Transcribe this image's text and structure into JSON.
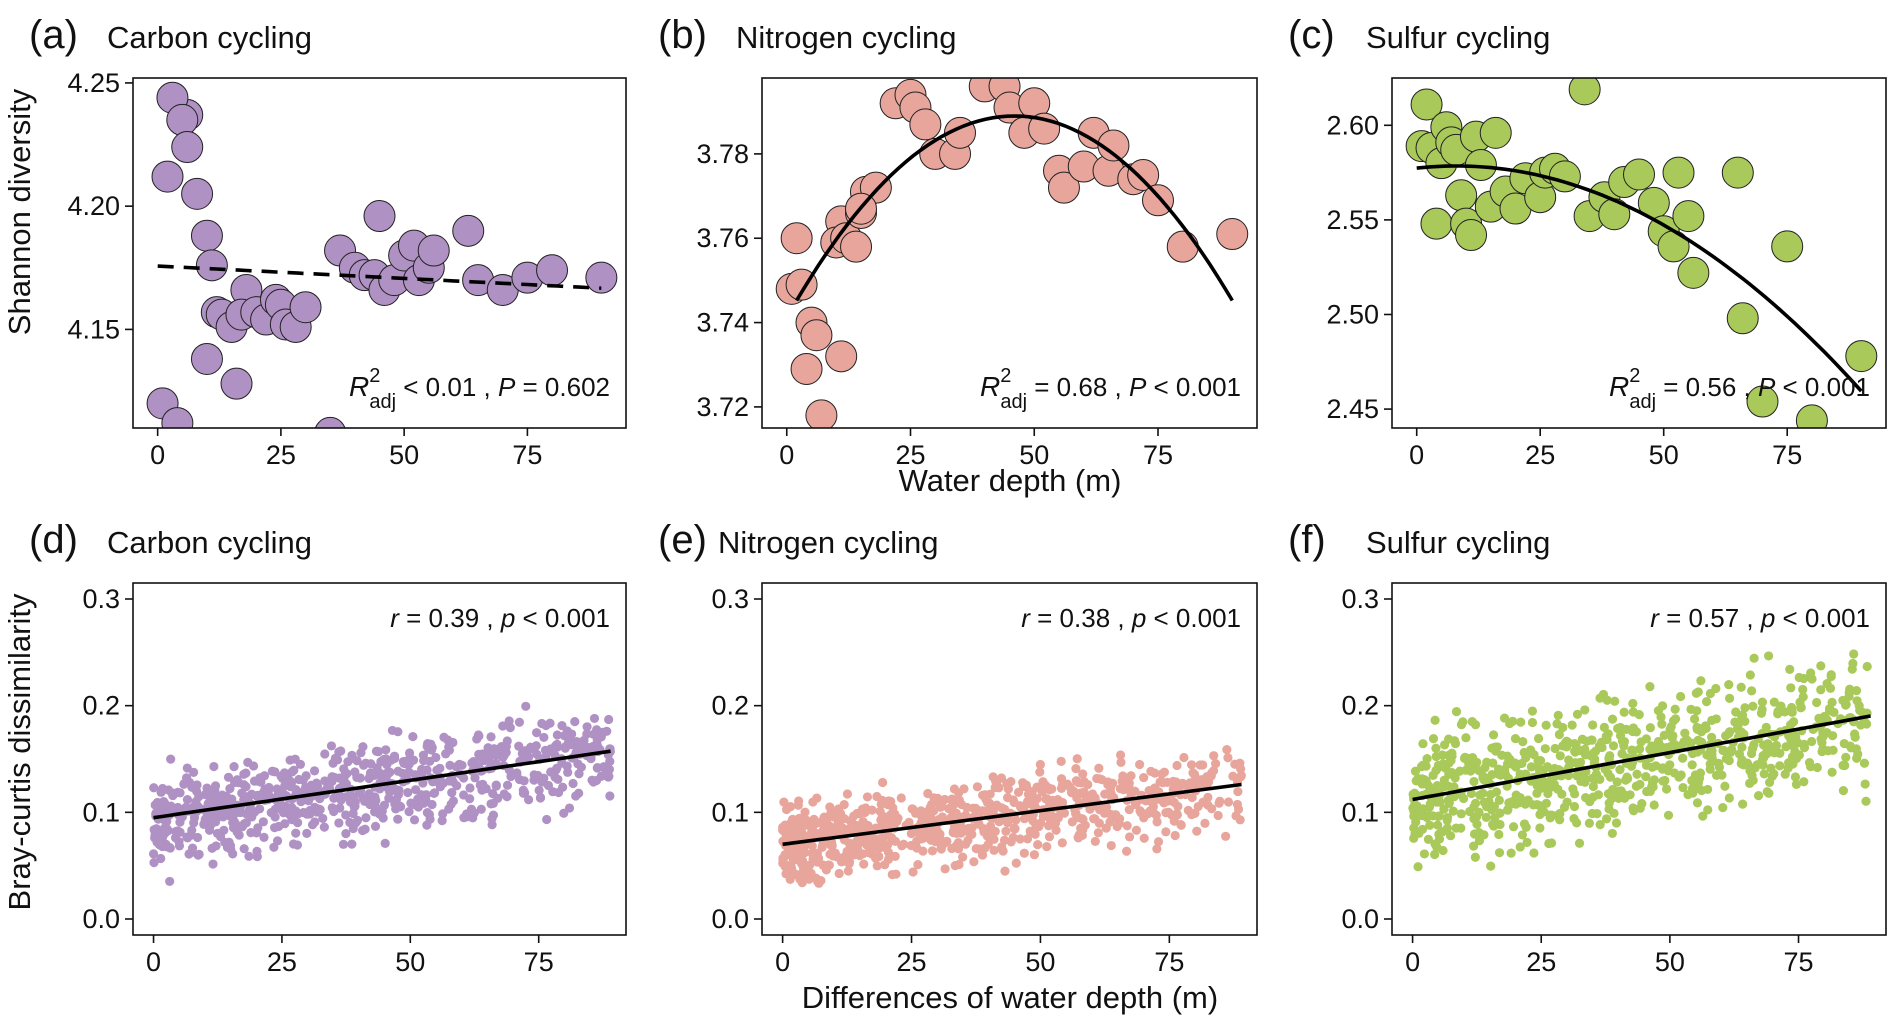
{
  "figure": {
    "ylabel_top": "Shannon diversity",
    "xlabel_top": "Water depth (m)",
    "ylabel_bottom": "Bray-curtis dissimilarity",
    "xlabel_bottom": "Differences of water depth (m)"
  },
  "chart_data": [
    {
      "id": "a",
      "panel_label": "(a)",
      "title": "Carbon cycling",
      "type": "scatter",
      "color": "#b091c4",
      "xlim": [
        -5,
        95
      ],
      "ylim": [
        4.11,
        4.252
      ],
      "xticks": [
        0,
        25,
        50,
        75
      ],
      "yticks": [
        4.15,
        4.2,
        4.25
      ],
      "ytick_labels": [
        "4.15",
        "4.20",
        "4.25"
      ],
      "xtick_labels": [
        "0",
        "25",
        "50",
        "75"
      ],
      "x": [
        1,
        4,
        6,
        3,
        5,
        6,
        2,
        8,
        10,
        11,
        10,
        12,
        13,
        15,
        16,
        18,
        17,
        20,
        22,
        24,
        25,
        26,
        28,
        30,
        35,
        37,
        40,
        42,
        44,
        45,
        46,
        48,
        50,
        52,
        53,
        55,
        56,
        63,
        65,
        70,
        75,
        80,
        90
      ],
      "y": [
        4.12,
        4.112,
        4.237,
        4.244,
        4.235,
        4.224,
        4.212,
        4.205,
        4.188,
        4.176,
        4.138,
        4.157,
        4.156,
        4.151,
        4.128,
        4.166,
        4.156,
        4.157,
        4.154,
        4.162,
        4.16,
        4.152,
        4.151,
        4.159,
        4.108,
        4.182,
        4.175,
        4.172,
        4.172,
        4.196,
        4.166,
        4.17,
        4.18,
        4.184,
        4.17,
        4.175,
        4.182,
        4.19,
        4.17,
        4.166,
        4.171,
        4.174,
        4.171
      ],
      "fit": {
        "style": "dashed",
        "type": "linear",
        "x_range": [
          0,
          90
        ],
        "a": 4.1757,
        "b": -0.0001
      },
      "stat": {
        "lhs": "R",
        "sup": "2",
        "sub": "adj",
        "rest": " < 0.01 , ",
        "p_sym": "P",
        "p_rest": " = 0.602"
      }
    },
    {
      "id": "b",
      "panel_label": "(b)",
      "title": "Nitrogen cycling",
      "type": "scatter",
      "color": "#e8a59c",
      "xlim": [
        -5,
        95
      ],
      "ylim": [
        3.715,
        3.798
      ],
      "xticks": [
        0,
        25,
        50,
        75
      ],
      "yticks": [
        3.72,
        3.74,
        3.76,
        3.78
      ],
      "ytick_labels": [
        "3.72",
        "3.74",
        "3.76",
        "3.78"
      ],
      "xtick_labels": [
        "0",
        "25",
        "50",
        "75"
      ],
      "x": [
        1,
        3,
        5,
        6,
        4,
        7,
        2,
        11,
        10,
        12,
        11,
        14,
        15,
        16,
        18,
        15,
        22,
        25,
        26,
        28,
        30,
        34,
        35,
        40,
        44,
        45,
        48,
        50,
        52,
        55,
        56,
        60,
        62,
        65,
        66,
        70,
        72,
        75,
        80,
        90
      ],
      "y": [
        3.748,
        3.749,
        3.74,
        3.737,
        3.729,
        3.718,
        3.76,
        3.764,
        3.759,
        3.76,
        3.732,
        3.758,
        3.766,
        3.771,
        3.772,
        3.767,
        3.792,
        3.794,
        3.791,
        3.787,
        3.78,
        3.78,
        3.785,
        3.796,
        3.796,
        3.791,
        3.785,
        3.792,
        3.786,
        3.776,
        3.772,
        3.777,
        3.785,
        3.776,
        3.782,
        3.774,
        3.775,
        3.769,
        3.758,
        3.761
      ],
      "fit": {
        "style": "solid",
        "type": "quadratic",
        "x_range": [
          2,
          90
        ],
        "vertex_x": 46,
        "vertex_y": 3.789,
        "k": -2.26e-05
      },
      "stat": {
        "lhs": "R",
        "sup": "2",
        "sub": "adj",
        "rest": " = 0.68 , ",
        "p_sym": "P",
        "p_rest": " < 0.001"
      }
    },
    {
      "id": "c",
      "panel_label": "(c)",
      "title": "Sulfur cycling",
      "type": "scatter",
      "color": "#a9c95a",
      "xlim": [
        -5,
        95
      ],
      "ylim": [
        2.44,
        2.625
      ],
      "xticks": [
        0,
        25,
        50,
        75
      ],
      "yticks": [
        2.45,
        2.5,
        2.55,
        2.6
      ],
      "ytick_labels": [
        "2.45",
        "2.50",
        "2.55",
        "2.60"
      ],
      "xtick_labels": [
        "0",
        "25",
        "50",
        "75"
      ],
      "x": [
        1,
        3,
        2,
        5,
        4,
        6,
        7,
        8,
        9,
        10,
        11,
        12,
        13,
        15,
        16,
        18,
        20,
        22,
        25,
        26,
        28,
        30,
        34,
        35,
        38,
        40,
        42,
        45,
        48,
        50,
        52,
        53,
        55,
        56,
        65,
        66,
        70,
        75,
        80,
        90
      ],
      "y": [
        2.589,
        2.588,
        2.611,
        2.58,
        2.548,
        2.599,
        2.591,
        2.587,
        2.563,
        2.548,
        2.542,
        2.594,
        2.579,
        2.557,
        2.596,
        2.565,
        2.556,
        2.572,
        2.562,
        2.575,
        2.577,
        2.573,
        2.619,
        2.552,
        2.562,
        2.553,
        2.57,
        2.574,
        2.559,
        2.544,
        2.536,
        2.575,
        2.552,
        2.522,
        2.575,
        2.498,
        2.454,
        2.536,
        2.444,
        2.478
      ],
      "fit": {
        "style": "solid",
        "type": "quadratic",
        "x_range": [
          0,
          90
        ],
        "vertex_x": 8,
        "vertex_y": 2.5785,
        "k": -1.77e-05
      },
      "stat": {
        "lhs": "R",
        "sup": "2",
        "sub": "adj",
        "rest": " = 0.56 , ",
        "p_sym": "P",
        "p_rest": " < 0.001"
      }
    },
    {
      "id": "d",
      "panel_label": "(d)",
      "title": "Carbon cycling",
      "type": "scatter",
      "color": "#b091c4",
      "xlim": [
        -4,
        92
      ],
      "ylim": [
        -0.015,
        0.315
      ],
      "xticks": [
        0,
        25,
        50,
        75
      ],
      "yticks": [
        0.0,
        0.1,
        0.2,
        0.3
      ],
      "ytick_labels": [
        "0.0",
        "0.1",
        "0.2",
        "0.3"
      ],
      "xtick_labels": [
        "0",
        "25",
        "50",
        "75"
      ],
      "dense": {
        "n": 760,
        "seed": 11,
        "x_max": 89,
        "intercept": 0.095,
        "slope": 0.0007,
        "sd_lo": 0.04,
        "sd_hi": 0.032,
        "skew_low_x": true,
        "clip": [
          0.027,
          0.228
        ]
      },
      "fit": {
        "style": "solid",
        "type": "linear",
        "x_range": [
          0,
          89
        ],
        "a": 0.095,
        "b": 0.0007
      },
      "stat": {
        "r_sym": "r",
        "r_rest": " = 0.39 , ",
        "p_sym": "p",
        "p_rest": "  < 0.001"
      }
    },
    {
      "id": "e",
      "panel_label": "(e)",
      "title": "Nitrogen cycling",
      "type": "scatter",
      "color": "#e8a59c",
      "xlim": [
        -4,
        92
      ],
      "ylim": [
        -0.015,
        0.315
      ],
      "xticks": [
        0,
        25,
        50,
        75
      ],
      "yticks": [
        0.0,
        0.1,
        0.2,
        0.3
      ],
      "ytick_labels": [
        "0.0",
        "0.1",
        "0.2",
        "0.3"
      ],
      "xtick_labels": [
        "0",
        "25",
        "50",
        "75"
      ],
      "dense": {
        "n": 760,
        "seed": 23,
        "x_max": 89,
        "intercept": 0.07,
        "slope": 0.00063,
        "sd_lo": 0.034,
        "sd_hi": 0.03,
        "skew_low_x": true,
        "clip": [
          0.022,
          0.24
        ]
      },
      "fit": {
        "style": "solid",
        "type": "linear",
        "x_range": [
          0,
          89
        ],
        "a": 0.07,
        "b": 0.00063
      },
      "stat": {
        "r_sym": "r",
        "r_rest": " = 0.38 , ",
        "p_sym": "p",
        "p_rest": "  < 0.001"
      }
    },
    {
      "id": "f",
      "panel_label": "(f)",
      "title": "Sulfur cycling",
      "type": "scatter",
      "color": "#a9c95a",
      "xlim": [
        -4,
        92
      ],
      "ylim": [
        -0.015,
        0.315
      ],
      "xticks": [
        0,
        25,
        50,
        75
      ],
      "yticks": [
        0.0,
        0.1,
        0.2,
        0.3
      ],
      "ytick_labels": [
        "0.0",
        "0.1",
        "0.2",
        "0.3"
      ],
      "xtick_labels": [
        "0",
        "25",
        "50",
        "75"
      ],
      "dense": {
        "n": 760,
        "seed": 37,
        "x_max": 89,
        "intercept": 0.112,
        "slope": 0.00088,
        "sd_lo": 0.05,
        "sd_hi": 0.05,
        "skew_low_x": true,
        "clip": [
          0.02,
          0.31
        ]
      },
      "fit": {
        "style": "solid",
        "type": "linear",
        "x_range": [
          0,
          89
        ],
        "a": 0.112,
        "b": 0.00088
      },
      "stat": {
        "r_sym": "r",
        "r_rest": " = 0.57 , ",
        "p_sym": "p",
        "p_rest": "  < 0.001"
      }
    }
  ]
}
